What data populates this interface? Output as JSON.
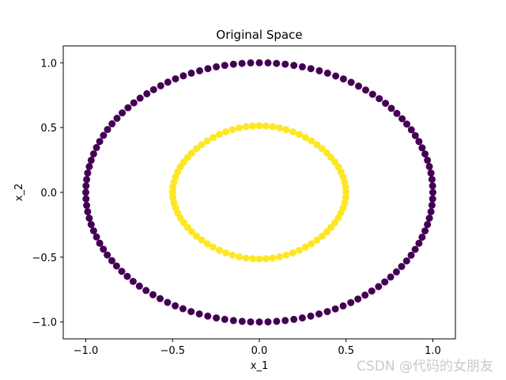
{
  "chart_data": {
    "type": "scatter",
    "title": "Original Space",
    "xlabel": "x_1",
    "ylabel": "x_2",
    "xlim": [
      -1.13,
      1.13
    ],
    "ylim": [
      -1.13,
      1.13
    ],
    "x_ticks": [
      -1.0,
      -0.5,
      0.0,
      0.5,
      1.0
    ],
    "y_ticks": [
      -1.0,
      -0.5,
      0.0,
      0.5,
      1.0
    ],
    "x_tick_labels": [
      "−1.0",
      "−0.5",
      "0.0",
      "0.5",
      "1.0"
    ],
    "y_tick_labels": [
      "−1.0",
      "−0.5",
      "0.0",
      "0.5",
      "1.0"
    ],
    "grid": false,
    "legend": "none",
    "series": [
      {
        "color": "#440154",
        "points": [
          [
            1.0,
            0.0
          ],
          [
            0.999,
            0.05
          ],
          [
            0.995,
            0.1
          ],
          [
            0.989,
            0.149
          ],
          [
            0.98,
            0.199
          ],
          [
            0.969,
            0.248
          ],
          [
            0.955,
            0.296
          ],
          [
            0.938,
            0.344
          ],
          [
            0.92,
            0.392
          ],
          [
            0.899,
            0.438
          ],
          [
            0.876,
            0.483
          ],
          [
            0.85,
            0.527
          ],
          [
            0.823,
            0.568
          ],
          [
            0.793,
            0.609
          ],
          [
            0.761,
            0.648
          ],
          [
            0.727,
            0.687
          ],
          [
            0.691,
            0.723
          ],
          [
            0.653,
            0.757
          ],
          [
            0.613,
            0.79
          ],
          [
            0.572,
            0.82
          ],
          [
            0.529,
            0.849
          ],
          [
            0.485,
            0.875
          ],
          [
            0.44,
            0.898
          ],
          [
            0.393,
            0.92
          ],
          [
            0.346,
            0.938
          ],
          [
            0.297,
            0.955
          ],
          [
            0.248,
            0.969
          ],
          [
            0.199,
            0.98
          ],
          [
            0.149,
            0.989
          ],
          [
            0.099,
            0.995
          ],
          [
            0.05,
            0.999
          ],
          [
            0.0,
            1.0
          ],
          [
            -0.05,
            0.999
          ],
          [
            -0.1,
            0.995
          ],
          [
            -0.149,
            0.989
          ],
          [
            -0.199,
            0.98
          ],
          [
            -0.248,
            0.969
          ],
          [
            -0.296,
            0.955
          ],
          [
            -0.344,
            0.938
          ],
          [
            -0.392,
            0.92
          ],
          [
            -0.438,
            0.899
          ],
          [
            -0.483,
            0.876
          ],
          [
            -0.527,
            0.85
          ],
          [
            -0.568,
            0.823
          ],
          [
            -0.609,
            0.793
          ],
          [
            -0.648,
            0.761
          ],
          [
            -0.687,
            0.727
          ],
          [
            -0.723,
            0.691
          ],
          [
            -0.757,
            0.653
          ],
          [
            -0.79,
            0.613
          ],
          [
            -0.82,
            0.572
          ],
          [
            -0.849,
            0.529
          ],
          [
            -0.875,
            0.485
          ],
          [
            -0.898,
            0.44
          ],
          [
            -0.92,
            0.393
          ],
          [
            -0.938,
            0.346
          ],
          [
            -0.955,
            0.297
          ],
          [
            -0.969,
            0.248
          ],
          [
            -0.98,
            0.199
          ],
          [
            -0.989,
            0.149
          ],
          [
            -0.995,
            0.099
          ],
          [
            -0.999,
            0.05
          ],
          [
            -1.0,
            0.0
          ],
          [
            -0.999,
            -0.05
          ],
          [
            -0.995,
            -0.1
          ],
          [
            -0.989,
            -0.149
          ],
          [
            -0.98,
            -0.199
          ],
          [
            -0.969,
            -0.248
          ],
          [
            -0.955,
            -0.296
          ],
          [
            -0.938,
            -0.344
          ],
          [
            -0.92,
            -0.392
          ],
          [
            -0.899,
            -0.438
          ],
          [
            -0.876,
            -0.483
          ],
          [
            -0.85,
            -0.527
          ],
          [
            -0.823,
            -0.568
          ],
          [
            -0.793,
            -0.609
          ],
          [
            -0.761,
            -0.648
          ],
          [
            -0.727,
            -0.687
          ],
          [
            -0.691,
            -0.723
          ],
          [
            -0.653,
            -0.757
          ],
          [
            -0.613,
            -0.79
          ],
          [
            -0.572,
            -0.82
          ],
          [
            -0.529,
            -0.849
          ],
          [
            -0.485,
            -0.875
          ],
          [
            -0.44,
            -0.898
          ],
          [
            -0.393,
            -0.92
          ],
          [
            -0.346,
            -0.938
          ],
          [
            -0.297,
            -0.955
          ],
          [
            -0.248,
            -0.969
          ],
          [
            -0.199,
            -0.98
          ],
          [
            -0.149,
            -0.989
          ],
          [
            -0.099,
            -0.995
          ],
          [
            -0.05,
            -0.999
          ],
          [
            0.0,
            -1.0
          ],
          [
            0.05,
            -0.999
          ],
          [
            0.1,
            -0.995
          ],
          [
            0.149,
            -0.989
          ],
          [
            0.199,
            -0.98
          ],
          [
            0.248,
            -0.969
          ],
          [
            0.296,
            -0.955
          ],
          [
            0.344,
            -0.938
          ],
          [
            0.392,
            -0.92
          ],
          [
            0.438,
            -0.899
          ],
          [
            0.483,
            -0.876
          ],
          [
            0.527,
            -0.85
          ],
          [
            0.568,
            -0.823
          ],
          [
            0.609,
            -0.793
          ],
          [
            0.648,
            -0.761
          ],
          [
            0.687,
            -0.727
          ],
          [
            0.723,
            -0.691
          ],
          [
            0.757,
            -0.653
          ],
          [
            0.79,
            -0.613
          ],
          [
            0.82,
            -0.572
          ],
          [
            0.849,
            -0.529
          ],
          [
            0.875,
            -0.485
          ],
          [
            0.898,
            -0.44
          ],
          [
            0.92,
            -0.393
          ],
          [
            0.938,
            -0.346
          ],
          [
            0.955,
            -0.297
          ],
          [
            0.969,
            -0.248
          ],
          [
            0.98,
            -0.199
          ],
          [
            0.989,
            -0.149
          ],
          [
            0.995,
            -0.099
          ],
          [
            0.999,
            -0.05
          ]
        ]
      },
      {
        "color": "#fde725",
        "points": [
          [
            0.5,
            0.0
          ],
          [
            0.498,
            0.04
          ],
          [
            0.492,
            0.08
          ],
          [
            0.483,
            0.119
          ],
          [
            0.47,
            0.158
          ],
          [
            0.455,
            0.197
          ],
          [
            0.435,
            0.234
          ],
          [
            0.413,
            0.27
          ],
          [
            0.389,
            0.304
          ],
          [
            0.362,
            0.338
          ],
          [
            0.332,
            0.368
          ],
          [
            0.3,
            0.397
          ],
          [
            0.266,
            0.423
          ],
          [
            0.23,
            0.447
          ],
          [
            0.193,
            0.467
          ],
          [
            0.155,
            0.484
          ],
          [
            0.116,
            0.497
          ],
          [
            0.077,
            0.507
          ],
          [
            0.038,
            0.512
          ],
          [
            0.0,
            0.514
          ],
          [
            -0.038,
            0.512
          ],
          [
            -0.077,
            0.507
          ],
          [
            -0.116,
            0.497
          ],
          [
            -0.155,
            0.484
          ],
          [
            -0.193,
            0.467
          ],
          [
            -0.23,
            0.447
          ],
          [
            -0.266,
            0.423
          ],
          [
            -0.3,
            0.397
          ],
          [
            -0.332,
            0.368
          ],
          [
            -0.362,
            0.338
          ],
          [
            -0.389,
            0.304
          ],
          [
            -0.413,
            0.27
          ],
          [
            -0.435,
            0.234
          ],
          [
            -0.455,
            0.197
          ],
          [
            -0.47,
            0.158
          ],
          [
            -0.483,
            0.119
          ],
          [
            -0.492,
            0.08
          ],
          [
            -0.498,
            0.04
          ],
          [
            -0.5,
            0.0
          ],
          [
            -0.498,
            -0.04
          ],
          [
            -0.492,
            -0.08
          ],
          [
            -0.483,
            -0.119
          ],
          [
            -0.47,
            -0.158
          ],
          [
            -0.455,
            -0.197
          ],
          [
            -0.435,
            -0.234
          ],
          [
            -0.413,
            -0.27
          ],
          [
            -0.389,
            -0.304
          ],
          [
            -0.362,
            -0.338
          ],
          [
            -0.332,
            -0.368
          ],
          [
            -0.3,
            -0.397
          ],
          [
            -0.266,
            -0.423
          ],
          [
            -0.23,
            -0.447
          ],
          [
            -0.193,
            -0.467
          ],
          [
            -0.155,
            -0.484
          ],
          [
            -0.116,
            -0.497
          ],
          [
            -0.077,
            -0.507
          ],
          [
            -0.038,
            -0.512
          ],
          [
            0.0,
            -0.514
          ],
          [
            0.038,
            -0.512
          ],
          [
            0.077,
            -0.507
          ],
          [
            0.116,
            -0.497
          ],
          [
            0.155,
            -0.484
          ],
          [
            0.193,
            -0.467
          ],
          [
            0.23,
            -0.447
          ],
          [
            0.266,
            -0.423
          ],
          [
            0.3,
            -0.397
          ],
          [
            0.332,
            -0.368
          ],
          [
            0.362,
            -0.338
          ],
          [
            0.389,
            -0.304
          ],
          [
            0.413,
            -0.27
          ],
          [
            0.435,
            -0.234
          ],
          [
            0.455,
            -0.197
          ],
          [
            0.47,
            -0.158
          ],
          [
            0.483,
            -0.119
          ],
          [
            0.492,
            -0.08
          ],
          [
            0.498,
            -0.04
          ]
        ]
      }
    ]
  },
  "watermark": "CSDN @代码的女朋友"
}
